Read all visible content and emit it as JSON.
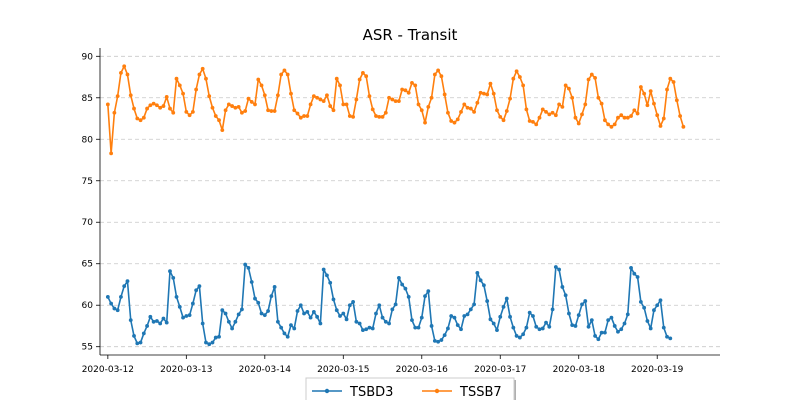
{
  "chart_data": {
    "type": "line",
    "title": "ASR - Transit",
    "xlabel": "",
    "ylabel": "",
    "ylim": [
      54.0,
      91.0
    ],
    "yticks": [
      55,
      60,
      65,
      70,
      75,
      80,
      85,
      90
    ],
    "ytick_labels": [
      "55",
      "60",
      "65",
      "70",
      "75",
      "80",
      "85",
      "90"
    ],
    "xlim": [
      -0.1,
      7.8
    ],
    "xticks": [
      0,
      1,
      2,
      3,
      4,
      5,
      6,
      7
    ],
    "xtick_labels": [
      "2020-03-12",
      "2020-03-13",
      "2020-03-14",
      "2020-03-15",
      "2020-03-16",
      "2020-03-17",
      "2020-03-18",
      "2020-03-19"
    ],
    "x_unit": "days from 2020-03-12, hourly samples",
    "grid": {
      "y": true,
      "x": false
    },
    "legend_position": "bottom-center",
    "series": [
      {
        "name": "TSBD3",
        "color": "#1f77b4",
        "values": [
          61.0,
          60.2,
          59.6,
          59.4,
          61.0,
          62.3,
          62.9,
          58.2,
          56.3,
          55.4,
          55.5,
          56.6,
          57.5,
          58.6,
          58.0,
          58.1,
          57.8,
          58.4,
          57.9,
          64.1,
          63.3,
          61.0,
          59.8,
          58.5,
          58.7,
          58.8,
          60.2,
          61.8,
          62.3,
          57.8,
          55.5,
          55.3,
          55.5,
          56.1,
          56.2,
          59.4,
          59.0,
          58.0,
          57.2,
          58.0,
          58.9,
          59.5,
          64.9,
          64.5,
          62.8,
          60.8,
          60.3,
          59.0,
          58.8,
          59.3,
          61.1,
          62.2,
          58.0,
          57.3,
          56.6,
          56.2,
          57.6,
          57.2,
          59.3,
          60.0,
          59.0,
          59.2,
          58.5,
          59.2,
          58.6,
          57.8,
          64.3,
          63.6,
          62.7,
          60.7,
          59.4,
          58.7,
          59.0,
          58.3,
          60.0,
          60.4,
          58.0,
          57.8,
          57.0,
          57.1,
          57.3,
          57.2,
          59.0,
          60.0,
          58.5,
          58.0,
          57.8,
          59.5,
          60.1,
          63.3,
          62.5,
          62.0,
          61.0,
          58.2,
          57.3,
          57.3,
          58.5,
          61.1,
          61.7,
          57.5,
          55.7,
          55.6,
          55.8,
          56.4,
          57.2,
          58.7,
          58.5,
          57.6,
          57.1,
          58.7,
          58.9,
          59.5,
          60.1,
          63.9,
          63.0,
          62.4,
          60.5,
          58.3,
          57.8,
          57.0,
          58.6,
          59.8,
          60.8,
          58.6,
          57.3,
          56.3,
          56.1,
          56.5,
          57.3,
          59.1,
          58.7,
          57.4,
          57.1,
          57.2,
          57.9,
          57.4,
          59.5,
          64.6,
          64.3,
          62.2,
          61.2,
          59.0,
          57.6,
          57.5,
          58.8,
          60.1,
          60.5,
          57.4,
          58.2,
          56.3,
          55.9,
          56.7,
          56.7,
          58.2,
          58.5,
          57.5,
          56.8,
          57.1,
          57.8,
          58.9,
          64.5,
          63.8,
          63.4,
          60.4,
          59.7,
          58.1,
          57.2,
          59.4,
          60.0,
          60.6,
          57.3,
          56.2,
          56.0
        ]
      },
      {
        "name": "TSSB7",
        "color": "#ff7f0e",
        "values": [
          84.2,
          78.3,
          83.2,
          85.2,
          88.0,
          88.8,
          87.8,
          85.3,
          83.7,
          82.5,
          82.3,
          82.6,
          83.7,
          84.1,
          84.3,
          84.1,
          83.8,
          84.0,
          85.1,
          83.7,
          83.2,
          87.3,
          86.5,
          85.5,
          83.3,
          82.9,
          83.3,
          86.0,
          87.8,
          88.5,
          87.3,
          85.2,
          83.8,
          82.8,
          82.3,
          81.1,
          83.5,
          84.2,
          84.0,
          83.8,
          83.9,
          83.2,
          83.4,
          84.9,
          84.5,
          84.2,
          87.2,
          86.5,
          85.3,
          83.5,
          83.4,
          83.4,
          85.3,
          87.8,
          88.3,
          87.8,
          85.5,
          83.5,
          83.1,
          82.6,
          82.8,
          82.8,
          84.2,
          85.2,
          85.0,
          84.8,
          84.6,
          85.3,
          84.0,
          83.5,
          87.3,
          86.5,
          84.2,
          84.2,
          82.8,
          82.7,
          84.8,
          87.2,
          88.0,
          87.6,
          85.2,
          83.6,
          82.8,
          82.7,
          82.7,
          83.2,
          85.0,
          84.8,
          84.6,
          84.6,
          86.0,
          85.9,
          85.6,
          86.8,
          86.5,
          84.2,
          83.5,
          82.0,
          83.9,
          85.0,
          87.8,
          88.3,
          87.6,
          85.4,
          83.2,
          82.2,
          82.0,
          82.4,
          83.3,
          84.2,
          83.8,
          83.7,
          83.3,
          84.4,
          85.6,
          85.5,
          85.4,
          86.7,
          85.5,
          83.5,
          82.7,
          82.3,
          83.4,
          84.9,
          87.3,
          88.2,
          87.5,
          86.5,
          83.6,
          82.2,
          82.1,
          81.8,
          82.6,
          83.6,
          83.3,
          83.0,
          83.2,
          82.9,
          84.2,
          83.9,
          86.5,
          86.1,
          85.0,
          82.6,
          81.9,
          83.0,
          84.2,
          87.2,
          87.8,
          87.4,
          85.0,
          84.3,
          82.3,
          81.8,
          81.5,
          81.8,
          82.6,
          82.9,
          82.6,
          82.6,
          82.8,
          83.5,
          83.1,
          86.3,
          85.5,
          84.1,
          85.8,
          84.3,
          82.9,
          81.6,
          82.5,
          86.0,
          87.3,
          86.9,
          84.7,
          82.8,
          81.5
        ]
      }
    ]
  }
}
